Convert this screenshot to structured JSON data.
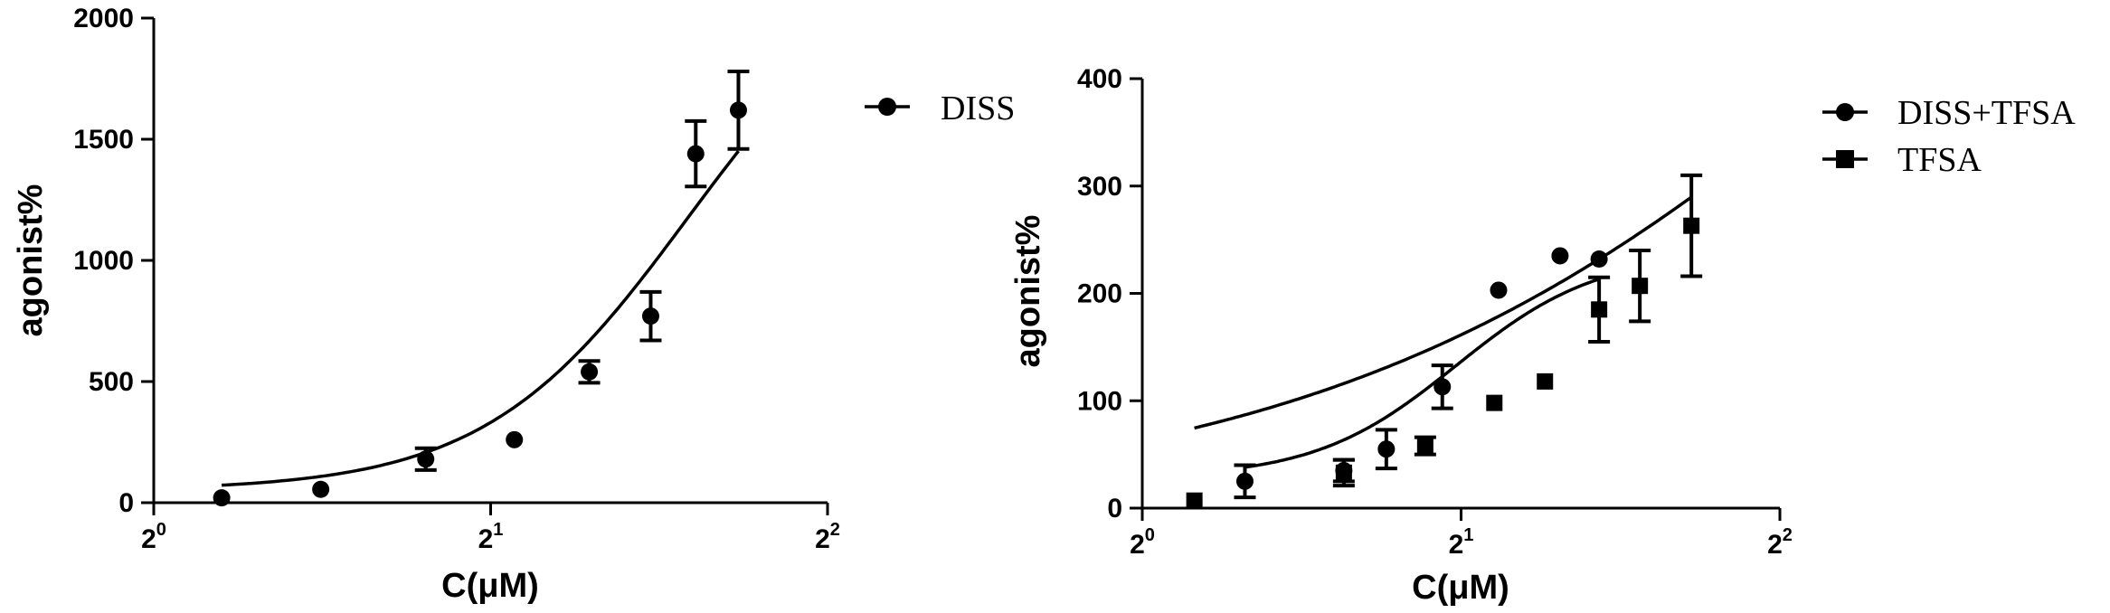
{
  "chart_data": [
    {
      "type": "scatter",
      "xlabel": "C(μM)",
      "ylabel": "agonist%",
      "x_scale": "log2",
      "xlim": [
        1,
        4
      ],
      "x_ticks": [
        {
          "base": "2",
          "exp": "0"
        },
        {
          "base": "2",
          "exp": "1"
        },
        {
          "base": "2",
          "exp": "2"
        }
      ],
      "ylim": [
        0,
        2000
      ],
      "y_ticks": [
        "0",
        "500",
        "1000",
        "1500",
        "2000"
      ],
      "y_tick_values": [
        0,
        500,
        1000,
        1500,
        2000
      ],
      "grid": false,
      "legend_position": "top-right",
      "series": [
        {
          "name": "DISS",
          "marker": "circle",
          "x": [
            1.15,
            1.41,
            1.75,
            2.1,
            2.45,
            2.78,
            3.05,
            3.33
          ],
          "y": [
            20,
            55,
            180,
            260,
            540,
            770,
            1440,
            1620
          ],
          "err": [
            0,
            0,
            45,
            0,
            45,
            100,
            135,
            160
          ],
          "fit": {
            "bottom": 50,
            "top": 2300,
            "ec50": 3.0,
            "hill": 4.8
          }
        }
      ]
    },
    {
      "type": "scatter",
      "xlabel": "C(μM)",
      "ylabel": "agonist%",
      "x_scale": "log2",
      "xlim": [
        1,
        4
      ],
      "x_ticks": [
        {
          "base": "2",
          "exp": "0"
        },
        {
          "base": "2",
          "exp": "1"
        },
        {
          "base": "2",
          "exp": "2"
        }
      ],
      "ylim": [
        0,
        400
      ],
      "y_ticks": [
        "0",
        "100",
        "200",
        "300",
        "400"
      ],
      "y_tick_values": [
        0,
        100,
        200,
        300,
        400
      ],
      "grid": false,
      "legend_position": "top-right",
      "series": [
        {
          "name": "DISS+TFSA",
          "marker": "circle",
          "x": [
            1.25,
            1.55,
            1.7,
            1.92,
            2.17,
            2.48,
            2.7
          ],
          "y": [
            25,
            35,
            55,
            113,
            203,
            235,
            232
          ],
          "err": [
            15,
            10,
            18,
            20,
            0,
            0,
            0
          ],
          "fit": {
            "bottom": 28,
            "top": 238,
            "ec50": 1.98,
            "hill": 6.5
          }
        },
        {
          "name": "TFSA",
          "marker": "square",
          "x": [
            1.12,
            1.55,
            1.85,
            2.15,
            2.4,
            2.7,
            2.95,
            3.3
          ],
          "y": [
            7,
            33,
            58,
            98,
            118,
            185,
            207,
            263
          ],
          "err": [
            0,
            12,
            8,
            0,
            0,
            30,
            33,
            47
          ],
          "fit": {
            "bottom": 0,
            "top": 1000,
            "ec50": 6.0,
            "hill": 1.5
          }
        }
      ]
    }
  ]
}
